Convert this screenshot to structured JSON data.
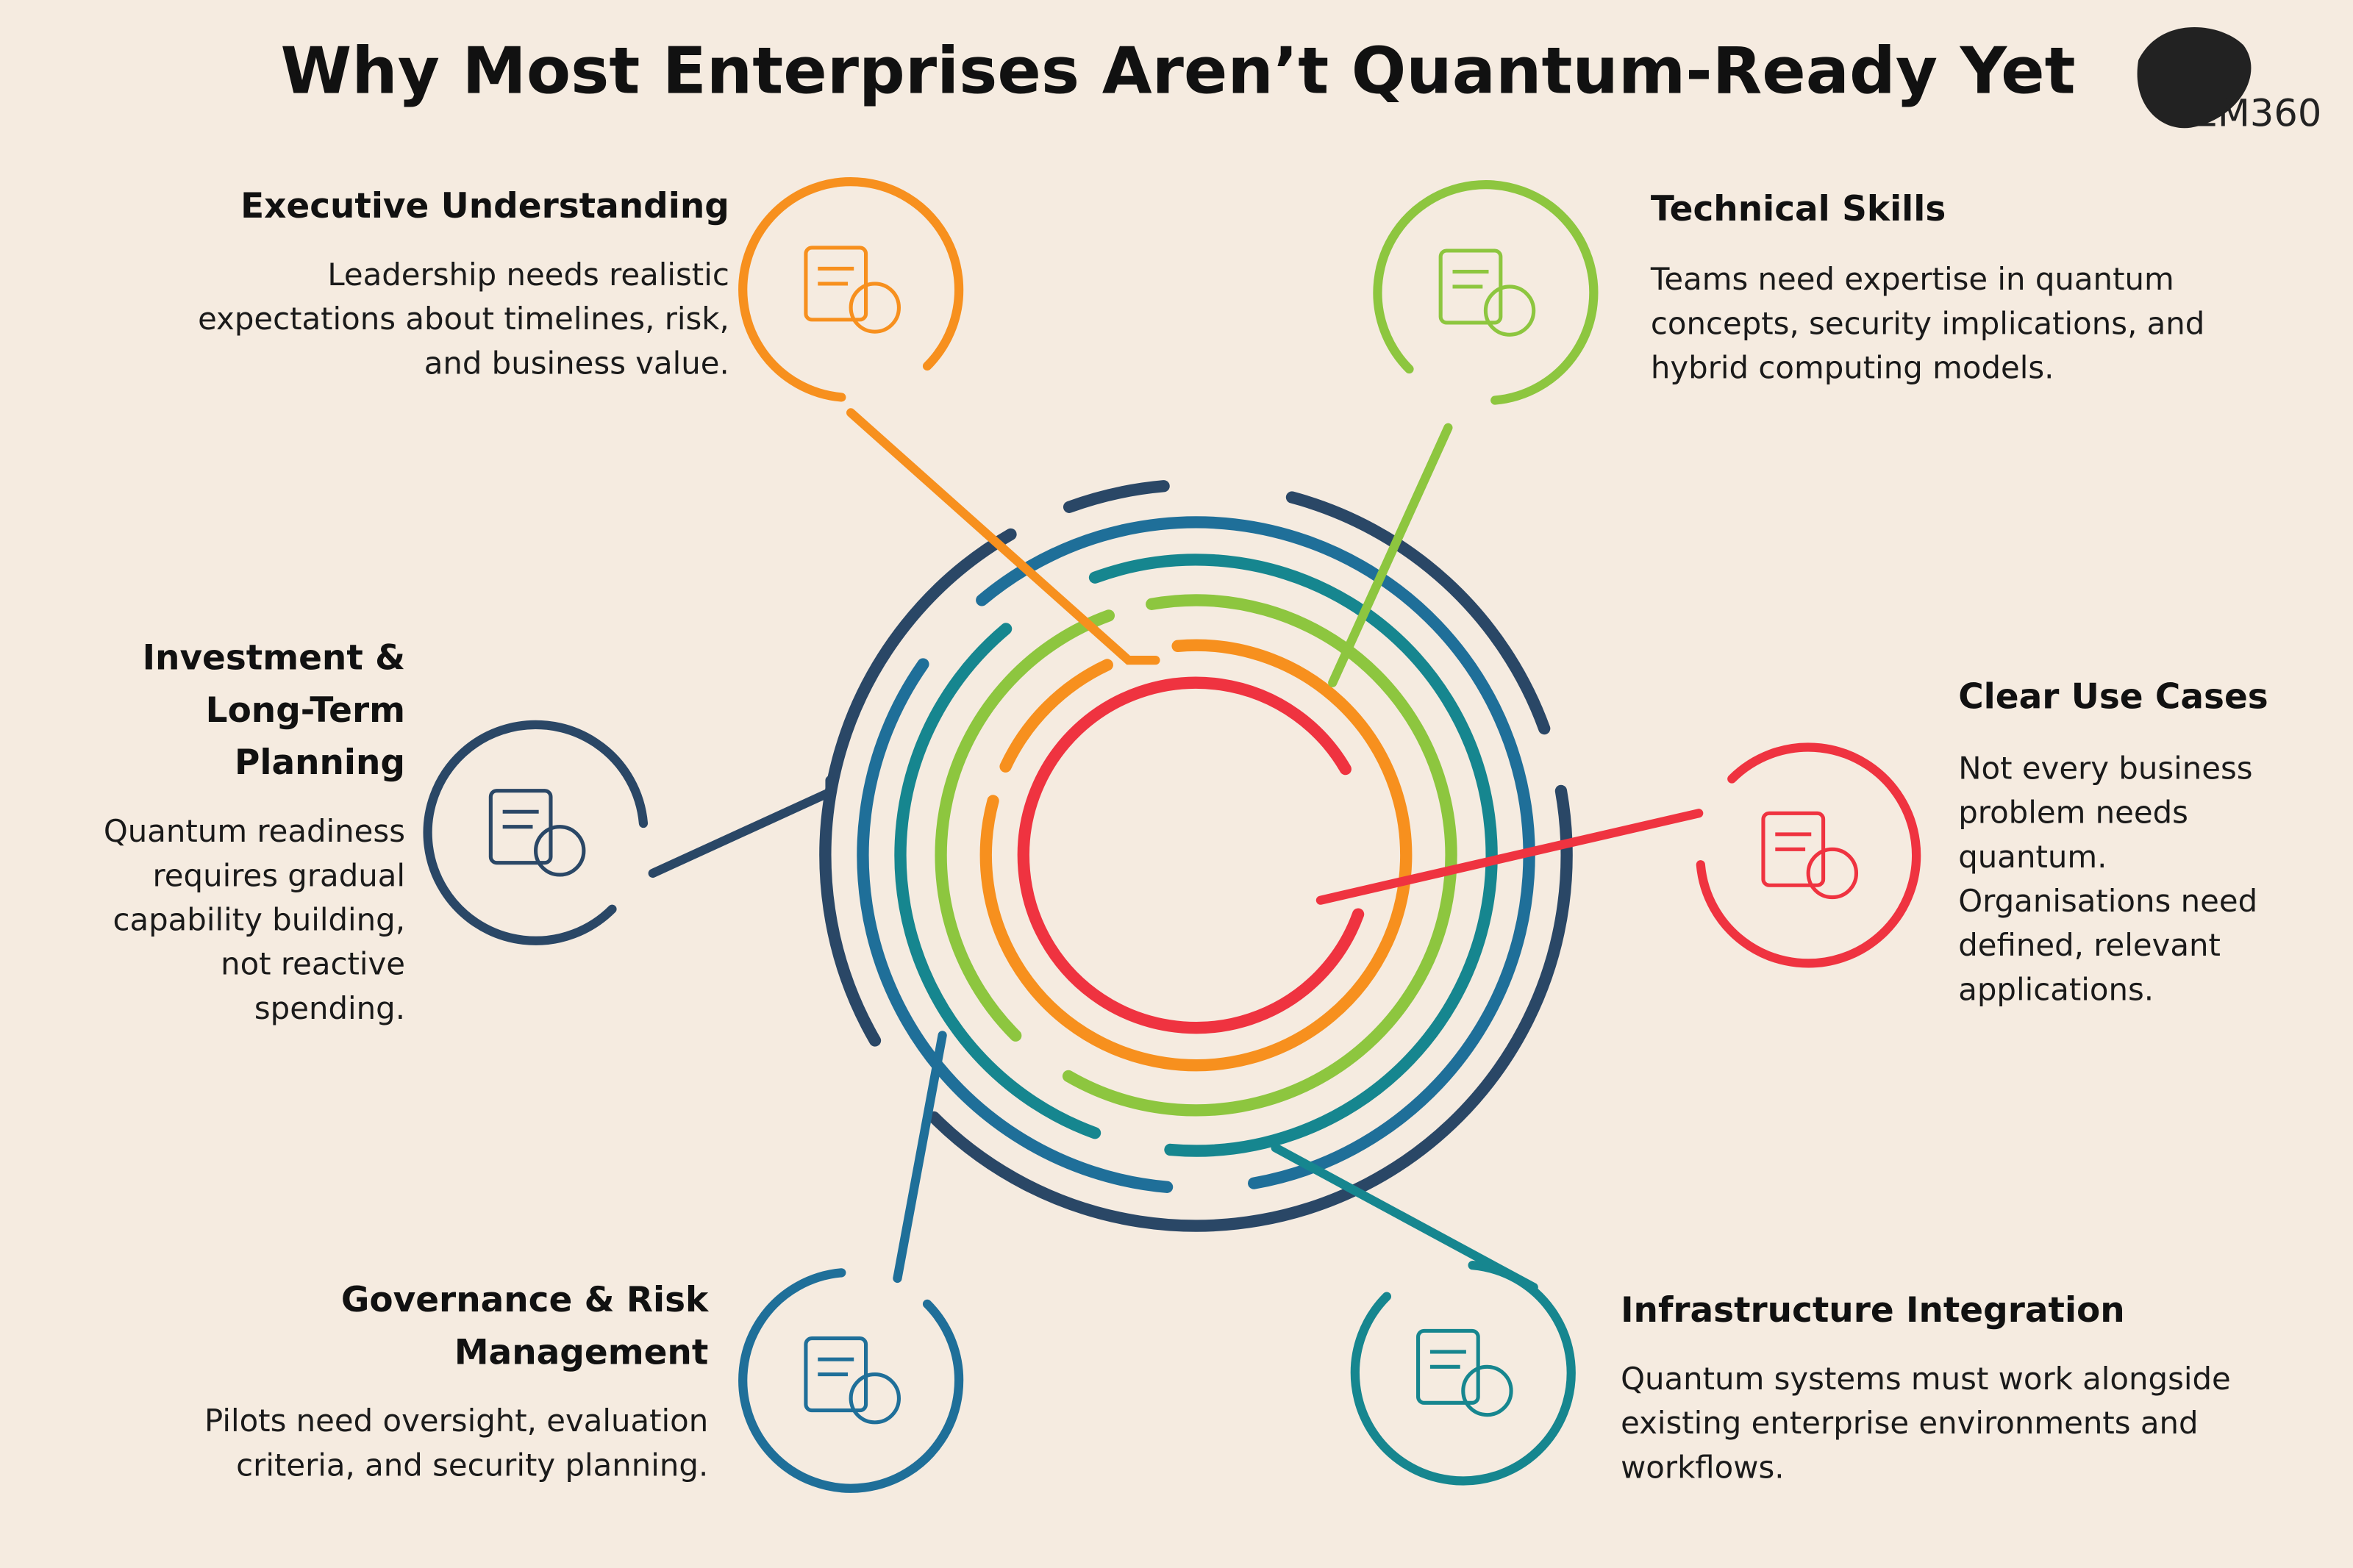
{
  "header": {
    "title": "Why Most Enterprises Aren’t Quantum-Ready Yet",
    "logo": "EM360"
  },
  "items": [
    {
      "title": [
        "Executive Understanding"
      ],
      "body": [
        "Leadership needs realistic",
        "expectations about timelines, risk,",
        "and business value."
      ]
    },
    {
      "title": [
        "Technical Skills"
      ],
      "body": [
        "Teams need expertise in quantum",
        "concepts, security implications, and",
        "hybrid computing models."
      ]
    },
    {
      "title": [
        "Clear Use Cases"
      ],
      "body": [
        "Not every business",
        "problem needs",
        "quantum.",
        "Organisations need",
        "defined, relevant",
        "applications."
      ]
    },
    {
      "title": [
        "Infrastructure Integration"
      ],
      "body": [
        "Quantum systems must work alongside",
        "existing enterprise environments and",
        "workflows."
      ]
    },
    {
      "title": [
        "Governance & Risk",
        "Management"
      ],
      "body": [
        "Pilots need oversight, evaluation",
        "criteria, and security planning."
      ]
    },
    {
      "title": [
        "Investment &",
        "Long-Term",
        "Planning"
      ],
      "body": [
        "Quantum readiness",
        "requires gradual",
        "capability building,",
        "not reactive",
        "spending."
      ]
    }
  ]
}
